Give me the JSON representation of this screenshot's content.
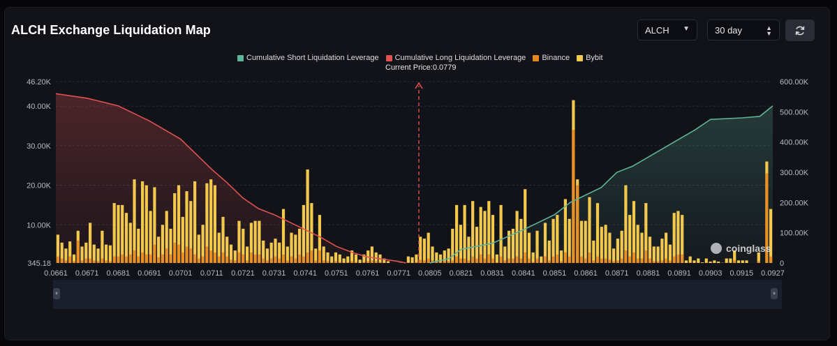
{
  "header": {
    "title": "ALCH Exchange Liquidation Map",
    "symbol_select": "ALCH",
    "period_select": "30 day",
    "refresh_icon": "refresh-icon"
  },
  "colors": {
    "short": "#5fb39b",
    "long": "#e05252",
    "binance": "#e6861f",
    "bybit": "#f2c94c",
    "background": "#121319"
  },
  "chart_data": {
    "type": "bar",
    "legend": [
      {
        "name": "Cumulative Short Liquidation Leverage",
        "color": "#5fb39b"
      },
      {
        "name": "Cumulative Long Liquidation Leverage",
        "color": "#e05252"
      },
      {
        "name": "Binance",
        "color": "#e6861f"
      },
      {
        "name": "Bybit",
        "color": "#f2c94c"
      }
    ],
    "current_price_label": "Current Price:0.0779",
    "current_price": 0.0779,
    "y_left_ticks": [
      "345.18",
      "10.00K",
      "20.00K",
      "30.00K",
      "40.00K",
      "46.20K"
    ],
    "y_left_values": [
      345.18,
      10000,
      20000,
      30000,
      40000,
      46200
    ],
    "y_left_range": [
      345.18,
      46200
    ],
    "y_right_ticks": [
      "0",
      "100.00K",
      "200.00K",
      "300.00K",
      "400.00K",
      "500.00K",
      "600.00K"
    ],
    "y_right_range": [
      0,
      600000
    ],
    "x_ticks": [
      "0.0661",
      "0.0671",
      "0.0681",
      "0.0691",
      "0.0701",
      "0.0711",
      "0.0721",
      "0.0731",
      "0.0741",
      "0.0751",
      "0.0761",
      "0.0771",
      "0.0805",
      "0.0821",
      "0.0831",
      "0.0841",
      "0.0851",
      "0.0861",
      "0.0871",
      "0.0881",
      "0.0891",
      "0.0903",
      "0.0915",
      "0.0927"
    ],
    "bars_total": [
      7500,
      5500,
      4000,
      5800,
      2500,
      8500,
      4500,
      5500,
      10500,
      5000,
      4000,
      8500,
      5000,
      4800,
      15500,
      15000,
      15000,
      13000,
      10500,
      21500,
      9000,
      21000,
      20000,
      13500,
      19500,
      7000,
      10000,
      13500,
      9000,
      18000,
      20000,
      12000,
      18500,
      16000,
      21000,
      7500,
      10000,
      20500,
      21500,
      20000,
      8000,
      12000,
      7000,
      5000,
      3500,
      11000,
      9000,
      4500,
      10500,
      11000,
      11000,
      6000,
      4000,
      5500,
      6500,
      5500,
      14000,
      4500,
      8000,
      7500,
      9000,
      15000,
      24000,
      15500,
      4000,
      12500,
      4500,
      3000,
      2000,
      3000,
      2500,
      1500,
      2000,
      3500,
      2500,
      1200,
      2500,
      3500,
      4500,
      3000,
      2500,
      1500,
      800,
      200,
      300,
      400,
      300,
      2000,
      1800,
      2500,
      7000,
      6500,
      8000,
      4500,
      3000,
      2500,
      3500,
      4000,
      9000,
      15000,
      10000,
      15000,
      7000,
      16000,
      9500,
      14500,
      13500,
      16000,
      12500,
      2500,
      15000,
      4500,
      8500,
      9000,
      13500,
      11500,
      19000,
      8000,
      3000,
      8500,
      2000,
      10500,
      6000,
      11500,
      12500,
      3500,
      16500,
      11500,
      41500,
      21500,
      11000,
      11000,
      17000,
      6000,
      15500,
      9500,
      10000,
      8000,
      4000,
      6500,
      8500,
      20000,
      12500,
      16000,
      10000,
      8000,
      15500,
      7000,
      4500,
      4500,
      6500,
      8000,
      5000,
      13000,
      13500,
      12500,
      1000,
      2000,
      1000,
      1500,
      500,
      1500,
      700,
      1000,
      700,
      400,
      1500,
      1500,
      3500,
      1000,
      1000,
      1000,
      200,
      100,
      3000,
      300,
      26000,
      14000
    ],
    "bars_binance": [
      2000,
      1500,
      1000,
      2000,
      800,
      6000,
      1000,
      1500,
      1500,
      1000,
      800,
      1500,
      1000,
      800,
      2000,
      2000,
      2500,
      2000,
      2500,
      3500,
      2000,
      3000,
      2500,
      2500,
      5000,
      1800,
      2500,
      4000,
      2500,
      5500,
      5000,
      3000,
      4500,
      4000,
      2500,
      1500,
      2000,
      4500,
      3500,
      3000,
      2000,
      3000,
      2000,
      1200,
      1000,
      3000,
      2500,
      1000,
      3000,
      2500,
      2500,
      1500,
      1000,
      1500,
      2000,
      1500,
      2500,
      1000,
      2000,
      1500,
      2500,
      2000,
      3000,
      3500,
      1000,
      3500,
      1000,
      800,
      500,
      800,
      600,
      400,
      500,
      800,
      600,
      300,
      600,
      800,
      1000,
      800,
      600,
      400,
      200,
      50,
      80,
      100,
      80,
      500,
      400,
      600,
      1200,
      1000,
      1500,
      1000,
      800,
      600,
      800,
      800,
      1000,
      2000,
      1500,
      1500,
      1000,
      2000,
      1500,
      2500,
      1500,
      2500,
      1500,
      500,
      2000,
      1000,
      1500,
      1500,
      2000,
      1500,
      3000,
      1500,
      600,
      1500,
      500,
      2000,
      1000,
      2000,
      2500,
      800,
      3000,
      2000,
      34000,
      20000,
      2000,
      1500,
      3000,
      1000,
      2000,
      1500,
      1500,
      1200,
      800,
      1000,
      1500,
      3500,
      2000,
      3000,
      1500,
      1500,
      3500,
      1500,
      800,
      800,
      1000,
      1500,
      1000,
      2000,
      2500,
      2500,
      300,
      500,
      300,
      400,
      150,
      400,
      200,
      300,
      200,
      100,
      400,
      400,
      1000,
      300,
      300,
      300,
      50,
      30,
      800,
      80,
      23000,
      2000
    ],
    "cum_short_points": [
      [
        0.0805,
        0
      ],
      [
        0.0815,
        15000
      ],
      [
        0.0821,
        45000
      ],
      [
        0.0831,
        65000
      ],
      [
        0.0841,
        110000
      ],
      [
        0.0851,
        160000
      ],
      [
        0.0856,
        200000
      ],
      [
        0.0866,
        250000
      ],
      [
        0.0871,
        300000
      ],
      [
        0.0876,
        320000
      ],
      [
        0.0881,
        350000
      ],
      [
        0.0886,
        380000
      ],
      [
        0.0891,
        410000
      ],
      [
        0.0897,
        440000
      ],
      [
        0.0903,
        475000
      ],
      [
        0.0915,
        480000
      ],
      [
        0.0922,
        485000
      ],
      [
        0.0927,
        520000
      ]
    ],
    "cum_long_points": [
      [
        0.0661,
        560000
      ],
      [
        0.0671,
        545000
      ],
      [
        0.0681,
        520000
      ],
      [
        0.0691,
        470000
      ],
      [
        0.0701,
        410000
      ],
      [
        0.0711,
        310000
      ],
      [
        0.0716,
        265000
      ],
      [
        0.0721,
        215000
      ],
      [
        0.0726,
        180000
      ],
      [
        0.0731,
        160000
      ],
      [
        0.0741,
        110000
      ],
      [
        0.0746,
        85000
      ],
      [
        0.0751,
        55000
      ],
      [
        0.0756,
        35000
      ],
      [
        0.0761,
        20000
      ],
      [
        0.0771,
        5000
      ],
      [
        0.0779,
        0
      ]
    ]
  },
  "brand": "coinglass",
  "slider": {
    "left_handle": "⏸",
    "right_handle": "⏸"
  }
}
